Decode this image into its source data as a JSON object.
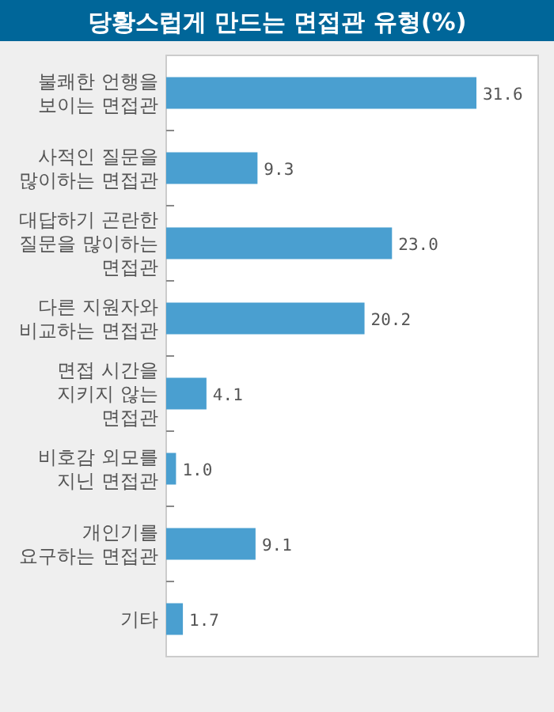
{
  "chart_data": {
    "type": "bar",
    "orientation": "horizontal",
    "title": "당황스럽게 만드는 면접관 유형(%)",
    "categories": [
      "불쾌한 언행을 보이는 면접관",
      "사적인 질문을 많이하는 면접관",
      "대답하기 곤란한 질문을 많이하는 면접관",
      "다른 지원자와 비교하는 면접관",
      "면접 시간을 지키지 않는 면접관",
      "비호감 외모를 지닌 면접관",
      "개인기를 요구하는 면접관",
      "기타"
    ],
    "values": [
      31.6,
      9.3,
      23.0,
      20.2,
      4.1,
      1.0,
      9.1,
      1.7
    ],
    "value_labels": [
      "31.6",
      "9.3",
      "23.0",
      "20.2",
      "4.1",
      "1.0",
      "9.1",
      "1.7"
    ],
    "color": "#4a9fd0"
  }
}
